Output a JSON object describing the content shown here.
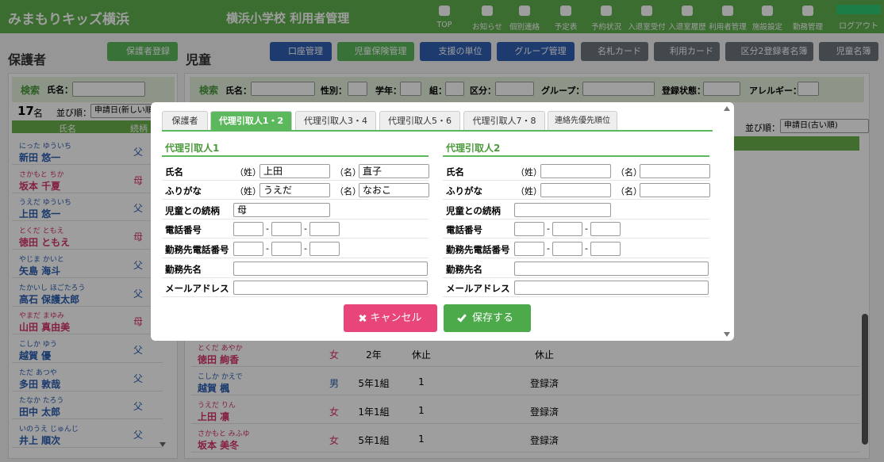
{
  "header": {
    "logo": "みまもりキッズ横浜",
    "title": "横浜小学校 利用者管理",
    "nav": [
      "TOP",
      "お知らせ",
      "個別連絡",
      "予定表",
      "予約状況",
      "入退室受付",
      "入退室履歴",
      "利用者管理",
      "施設設定",
      "勤務管理"
    ],
    "logout": "ログアウト"
  },
  "guardians": {
    "title": "保護者",
    "register_button": "保護者登録",
    "search": "検索",
    "name_label": "氏名：",
    "count": 17,
    "count_unit": "名",
    "sort_label": "並び順：",
    "sort_value": "申請日(新しい順)",
    "columns": [
      "氏名",
      "続柄"
    ],
    "rows": [
      {
        "kana": "にった ゆういち",
        "name": "新田 悠一",
        "relation": "父",
        "color": "#2a5db0"
      },
      {
        "kana": "さかもと ちか",
        "name": "坂本 千夏",
        "relation": "母",
        "color": "#d6336c"
      },
      {
        "kana": "うえだ ゆういち",
        "name": "上田 悠一",
        "relation": "父",
        "color": "#2a5db0"
      },
      {
        "kana": "とくだ ともえ",
        "name": "徳田 ともえ",
        "relation": "母",
        "color": "#d6336c"
      },
      {
        "kana": "やじま かいと",
        "name": "矢島 海斗",
        "relation": "父",
        "color": "#2a5db0"
      },
      {
        "kana": "たかいし ほごたろう",
        "name": "高石 保護太郎",
        "relation": "父",
        "color": "#2a5db0"
      },
      {
        "kana": "やまだ まゆみ",
        "name": "山田 真由美",
        "relation": "母",
        "color": "#d6336c"
      },
      {
        "kana": "こしか ゆう",
        "name": "越賀 優",
        "relation": "父",
        "color": "#2a5db0"
      },
      {
        "kana": "ただ あつや",
        "name": "多田 敦哉",
        "relation": "父",
        "color": "#2a5db0"
      },
      {
        "kana": "たなか たろう",
        "name": "田中 太郎",
        "relation": "父",
        "color": "#2a5db0"
      },
      {
        "kana": "いのうえ じゅんじ",
        "name": "井上 順次",
        "relation": "父",
        "color": "#2a5db0"
      }
    ]
  },
  "children": {
    "title": "児童",
    "buttons": [
      "口座管理",
      "児童保険管理",
      "支援の単位",
      "グループ管理",
      "名札カード",
      "利用カード",
      "区分2登録者名簿",
      "児童名簿"
    ],
    "search": "検索",
    "filters": [
      "氏名：",
      "性別：",
      "学年：",
      "組：",
      "区分：",
      "グループ：",
      "登録状態：",
      "アレルギー："
    ],
    "sort_label": "並び順：",
    "sort_value": "申請日(古い順)",
    "rows": [
      {
        "kana": "とくだ あやか",
        "name": "徳田 絢香",
        "gender": "女",
        "grade": "2年",
        "category": "休止",
        "status": "休止",
        "color": "#d6336c"
      },
      {
        "kana": "こしか かえで",
        "name": "越賀 楓",
        "gender": "男",
        "grade": "5年1組",
        "category": "1",
        "status": "登録済",
        "color": "#2a5db0"
      },
      {
        "kana": "うえだ りん",
        "name": "上田 凛",
        "gender": "女",
        "grade": "1年1組",
        "category": "1",
        "status": "登録済",
        "color": "#d6336c"
      },
      {
        "kana": "さかもと みふゆ",
        "name": "坂本 美冬",
        "gender": "女",
        "grade": "5年1組",
        "category": "1",
        "status": "登録済",
        "color": "#d6336c"
      }
    ]
  },
  "modal": {
    "tabs": [
      "保護者",
      "代理引取人1・2",
      "代理引取人3・4",
      "代理引取人5・6",
      "代理引取人7・8",
      "連絡先優先順位"
    ],
    "sei": "（姓）",
    "mei": "（名）",
    "dash": "-",
    "field_labels": [
      "氏名",
      "ふりがな",
      "児童との続柄",
      "電話番号",
      "勤務先電話番号",
      "勤務先名",
      "メールアドレス"
    ],
    "columns": [
      {
        "title": "代理引取人1",
        "last_name": "上田",
        "first_name": "直子",
        "last_kana": "うえだ",
        "first_kana": "なおこ",
        "relation": "母"
      },
      {
        "title": "代理引取人2"
      }
    ],
    "cancel": "キャンセル",
    "save": "保存する"
  }
}
